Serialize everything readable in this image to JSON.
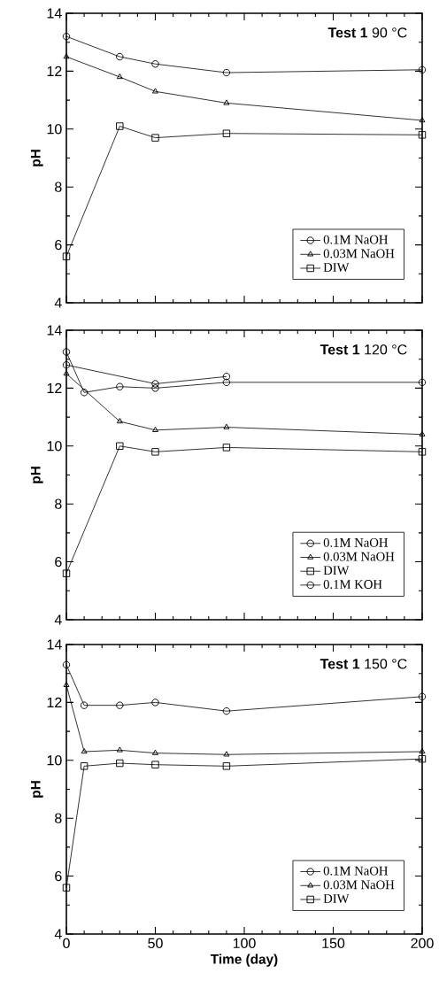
{
  "chart_data": [
    {
      "type": "line",
      "title": "**Test 1** 90 °C",
      "ylabel": "pH",
      "xlim": [
        0,
        200
      ],
      "ylim": [
        4,
        14
      ],
      "xticks": [
        0,
        50,
        100,
        150,
        200
      ],
      "yticks": [
        4,
        6,
        8,
        10,
        12,
        14
      ],
      "tick_labels": "y",
      "legend": "bottom right",
      "line_style": "solid",
      "series": [
        {
          "name": "0.1M NaOH",
          "color": "#000000",
          "marker": "circle",
          "x": [
            0,
            30,
            50,
            90,
            200
          ],
          "values": [
            13.2,
            12.5,
            12.25,
            11.95,
            12.05
          ]
        },
        {
          "name": "0.03M NaOH",
          "color": "#000000",
          "marker": "triangle",
          "x": [
            0,
            30,
            50,
            90,
            200
          ],
          "values": [
            12.5,
            11.8,
            11.3,
            10.9,
            10.3
          ]
        },
        {
          "name": "DIW",
          "color": "#000000",
          "marker": "square",
          "x": [
            0,
            30,
            50,
            90,
            200
          ],
          "values": [
            5.6,
            10.1,
            9.7,
            9.85,
            9.8
          ]
        }
      ]
    },
    {
      "type": "line",
      "title": "**Test 1** 120 °C",
      "ylabel": "pH",
      "xlim": [
        0,
        200
      ],
      "ylim": [
        4,
        14
      ],
      "xticks": [
        0,
        50,
        100,
        150,
        200
      ],
      "yticks": [
        4,
        6,
        8,
        10,
        12,
        14
      ],
      "tick_labels": "y",
      "legend": "bottom right",
      "line_style": "solid",
      "series": [
        {
          "name": "0.1M NaOH",
          "color": "#000000",
          "marker": "circle",
          "x": [
            0,
            10,
            30,
            50,
            90,
            200
          ],
          "values": [
            13.25,
            11.85,
            12.05,
            12.0,
            12.2,
            12.2
          ]
        },
        {
          "name": "0.03M NaOH",
          "color": "#000000",
          "marker": "triangle",
          "x": [
            0,
            30,
            50,
            90,
            200
          ],
          "values": [
            12.5,
            10.85,
            10.55,
            10.65,
            10.4
          ]
        },
        {
          "name": "DIW",
          "color": "#000000",
          "marker": "square",
          "x": [
            0,
            30,
            50,
            90,
            200
          ],
          "values": [
            5.6,
            10.0,
            9.8,
            9.95,
            9.8
          ]
        },
        {
          "name": "0.1M KOH",
          "color": "#000000",
          "marker": "circle",
          "x": [
            0,
            50,
            90
          ],
          "values": [
            12.8,
            12.15,
            12.4
          ]
        }
      ]
    },
    {
      "type": "line",
      "title": "**Test 1** 150 °C",
      "xlabel": "Time (day)",
      "ylabel": "pH",
      "xlim": [
        0,
        200
      ],
      "ylim": [
        4,
        14
      ],
      "xticks": [
        0,
        50,
        100,
        150,
        200
      ],
      "yticks": [
        4,
        6,
        8,
        10,
        12,
        14
      ],
      "legend": "bottom right",
      "line_style": "solid",
      "series": [
        {
          "name": "0.1M NaOH",
          "color": "#000000",
          "marker": "circle",
          "x": [
            0,
            10,
            30,
            50,
            90,
            200
          ],
          "values": [
            13.3,
            11.9,
            11.9,
            12.0,
            11.7,
            12.2
          ]
        },
        {
          "name": "0.03M NaOH",
          "color": "#000000",
          "marker": "triangle",
          "x": [
            0,
            10,
            30,
            50,
            90,
            200
          ],
          "values": [
            12.6,
            10.3,
            10.35,
            10.25,
            10.2,
            10.3
          ]
        },
        {
          "name": "DIW",
          "color": "#000000",
          "marker": "square",
          "x": [
            0,
            10,
            30,
            50,
            90,
            200
          ],
          "values": [
            5.6,
            9.8,
            9.9,
            9.85,
            9.8,
            10.05
          ]
        }
      ]
    }
  ]
}
